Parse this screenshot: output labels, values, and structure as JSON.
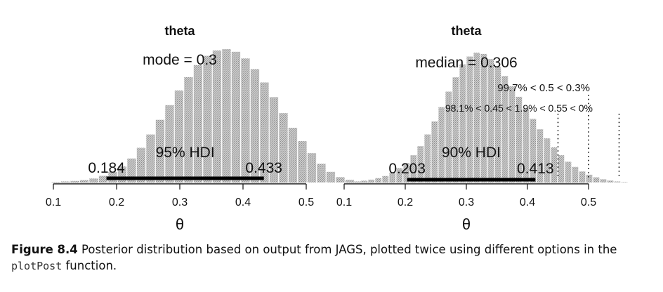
{
  "chart_data": [
    {
      "type": "bar",
      "title": "theta",
      "xlabel": "θ",
      "xlim": [
        0.1,
        0.5
      ],
      "x_ticks": [
        "0.1",
        "0.2",
        "0.3",
        "0.4",
        "0.5"
      ],
      "histogram": {
        "bin_width": 0.015,
        "start": 0.097,
        "relative_heights": [
          0.004,
          0.008,
          0.012,
          0.018,
          0.03,
          0.05,
          0.08,
          0.12,
          0.18,
          0.26,
          0.36,
          0.47,
          0.58,
          0.69,
          0.79,
          0.88,
          0.95,
          0.99,
          1.0,
          0.98,
          0.93,
          0.85,
          0.75,
          0.64,
          0.52,
          0.41,
          0.31,
          0.22,
          0.14,
          0.08,
          0.04,
          0.02,
          0.008,
          0.003
        ]
      },
      "central_tendency_label": "mode = 0.3",
      "hdi": {
        "label": "95% HDI",
        "low": 0.184,
        "high": 0.433,
        "low_label": "0.184",
        "high_label": "0.433"
      }
    },
    {
      "type": "bar",
      "title": "theta",
      "xlabel": "θ",
      "xlim": [
        0.1,
        0.5
      ],
      "x_ticks": [
        "0.1",
        "0.2",
        "0.3",
        "0.4",
        "0.5"
      ],
      "histogram": {
        "bin_width": 0.0115,
        "start": 0.105,
        "relative_heights": [
          0.004,
          0.008,
          0.014,
          0.022,
          0.034,
          0.05,
          0.075,
          0.11,
          0.15,
          0.21,
          0.28,
          0.37,
          0.47,
          0.58,
          0.7,
          0.81,
          0.91,
          0.97,
          1.0,
          0.99,
          0.95,
          0.89,
          0.82,
          0.74,
          0.66,
          0.57,
          0.49,
          0.41,
          0.34,
          0.27,
          0.21,
          0.16,
          0.12,
          0.085,
          0.06,
          0.04,
          0.025,
          0.015,
          0.008,
          0.004
        ]
      },
      "central_tendency_label": "median = 0.306",
      "hdi": {
        "label": "90% HDI",
        "low": 0.203,
        "high": 0.413,
        "low_label": "0.203",
        "high_label": "0.413"
      },
      "comparison_text": "99.7% < 0.5 < 0.3%",
      "rope_text": "98.1% < 0.45 < 1.9% < 0.55 < 0%",
      "reference_lines": [
        {
          "x": 0.5,
          "style": "dotted"
        },
        {
          "x": 0.45,
          "style": "dotted"
        },
        {
          "x": 0.55,
          "style": "dotted"
        }
      ]
    }
  ],
  "caption": {
    "label": "Figure 8.4",
    "text_before": " Posterior distribution based on output from JAGS, plotted twice using different options in the ",
    "code": "plotPost",
    "text_after": " function."
  }
}
